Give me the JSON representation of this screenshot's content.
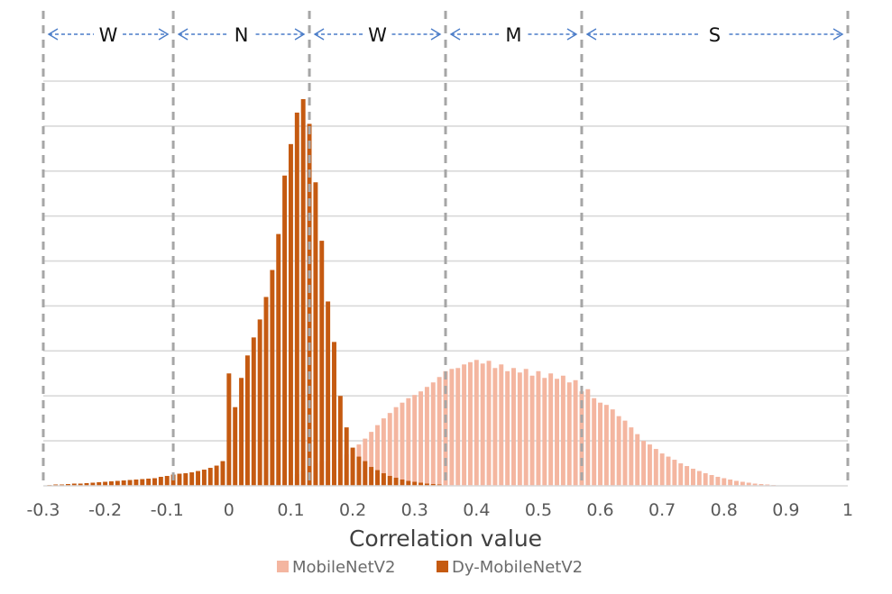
{
  "chart_data": {
    "type": "bar",
    "title": "",
    "xlabel": "Correlation value",
    "ylabel": "",
    "xlim": [
      -0.3,
      1.0
    ],
    "ylim": [
      0,
      9
    ],
    "x_ticks": [
      "-0.3",
      "-0.2",
      "-0.1",
      "0",
      "0.1",
      "0.2",
      "0.3",
      "0.4",
      "0.5",
      "0.6",
      "0.7",
      "0.8",
      "0.9",
      "1"
    ],
    "grid": true,
    "legend_position": "bottom-center",
    "region_boundaries": [
      -0.3,
      -0.09,
      0.13,
      0.35,
      0.57,
      1.0
    ],
    "regions": [
      {
        "label": "W",
        "from": -0.3,
        "to": -0.09
      },
      {
        "label": "N",
        "from": -0.09,
        "to": 0.13
      },
      {
        "label": "W",
        "from": 0.13,
        "to": 0.35
      },
      {
        "label": "M",
        "from": 0.35,
        "to": 0.57
      },
      {
        "label": "S",
        "from": 0.57,
        "to": 1.0
      }
    ],
    "bin_width": 0.01,
    "series": [
      {
        "name": "MobileNetV2",
        "color": "#f4b6a0",
        "x": [
          0.07,
          0.08,
          0.09,
          0.1,
          0.11,
          0.12,
          0.13,
          0.14,
          0.15,
          0.16,
          0.17,
          0.18,
          0.19,
          0.2,
          0.21,
          0.22,
          0.23,
          0.24,
          0.25,
          0.26,
          0.27,
          0.28,
          0.29,
          0.3,
          0.31,
          0.32,
          0.33,
          0.34,
          0.35,
          0.36,
          0.37,
          0.38,
          0.39,
          0.4,
          0.41,
          0.42,
          0.43,
          0.44,
          0.45,
          0.46,
          0.47,
          0.48,
          0.49,
          0.5,
          0.51,
          0.52,
          0.53,
          0.54,
          0.55,
          0.56,
          0.57,
          0.58,
          0.59,
          0.6,
          0.61,
          0.62,
          0.63,
          0.64,
          0.65,
          0.66,
          0.67,
          0.68,
          0.69,
          0.7,
          0.71,
          0.72,
          0.73,
          0.74,
          0.75,
          0.76,
          0.77,
          0.78,
          0.79,
          0.8,
          0.81,
          0.82,
          0.83,
          0.84,
          0.85,
          0.86,
          0.87,
          0.88
        ],
        "values": [
          0.04,
          0.07,
          0.12,
          0.18,
          0.26,
          0.34,
          0.42,
          0.5,
          0.55,
          0.55,
          0.55,
          0.6,
          0.7,
          0.82,
          0.92,
          1.05,
          1.2,
          1.35,
          1.5,
          1.62,
          1.75,
          1.85,
          1.95,
          2.02,
          2.1,
          2.2,
          2.3,
          2.42,
          2.55,
          2.6,
          2.62,
          2.7,
          2.75,
          2.8,
          2.72,
          2.78,
          2.62,
          2.7,
          2.55,
          2.62,
          2.52,
          2.6,
          2.45,
          2.55,
          2.4,
          2.5,
          2.38,
          2.45,
          2.3,
          2.35,
          2.1,
          2.15,
          1.95,
          1.85,
          1.8,
          1.7,
          1.55,
          1.45,
          1.3,
          1.15,
          1.0,
          0.92,
          0.82,
          0.72,
          0.65,
          0.58,
          0.5,
          0.44,
          0.38,
          0.33,
          0.28,
          0.24,
          0.2,
          0.17,
          0.14,
          0.11,
          0.09,
          0.07,
          0.05,
          0.04,
          0.03,
          0.02
        ]
      },
      {
        "name": "Dy-MobileNetV2",
        "color": "#c55a11",
        "x": [
          -0.29,
          -0.28,
          -0.27,
          -0.26,
          -0.25,
          -0.24,
          -0.23,
          -0.22,
          -0.21,
          -0.2,
          -0.19,
          -0.18,
          -0.17,
          -0.16,
          -0.15,
          -0.14,
          -0.13,
          -0.12,
          -0.11,
          -0.1,
          -0.09,
          -0.08,
          -0.07,
          -0.06,
          -0.05,
          -0.04,
          -0.03,
          -0.02,
          -0.01,
          0.0,
          0.01,
          0.02,
          0.03,
          0.04,
          0.05,
          0.06,
          0.07,
          0.08,
          0.09,
          0.1,
          0.11,
          0.12,
          0.13,
          0.14,
          0.15,
          0.16,
          0.17,
          0.18,
          0.19,
          0.2,
          0.21,
          0.22,
          0.23,
          0.24,
          0.25,
          0.26,
          0.27,
          0.28,
          0.29,
          0.3,
          0.31,
          0.32,
          0.33,
          0.34
        ],
        "values": [
          0.02,
          0.03,
          0.03,
          0.04,
          0.05,
          0.05,
          0.06,
          0.07,
          0.08,
          0.09,
          0.1,
          0.11,
          0.12,
          0.13,
          0.14,
          0.15,
          0.16,
          0.17,
          0.2,
          0.22,
          0.25,
          0.27,
          0.28,
          0.3,
          0.33,
          0.36,
          0.4,
          0.45,
          0.55,
          2.5,
          1.75,
          2.4,
          2.9,
          3.3,
          3.7,
          4.2,
          4.8,
          5.6,
          6.9,
          7.6,
          8.3,
          8.6,
          8.05,
          6.75,
          5.45,
          4.1,
          3.2,
          2.0,
          1.3,
          0.85,
          0.65,
          0.55,
          0.42,
          0.35,
          0.28,
          0.22,
          0.18,
          0.14,
          0.11,
          0.09,
          0.07,
          0.05,
          0.04,
          0.03
        ]
      }
    ]
  }
}
